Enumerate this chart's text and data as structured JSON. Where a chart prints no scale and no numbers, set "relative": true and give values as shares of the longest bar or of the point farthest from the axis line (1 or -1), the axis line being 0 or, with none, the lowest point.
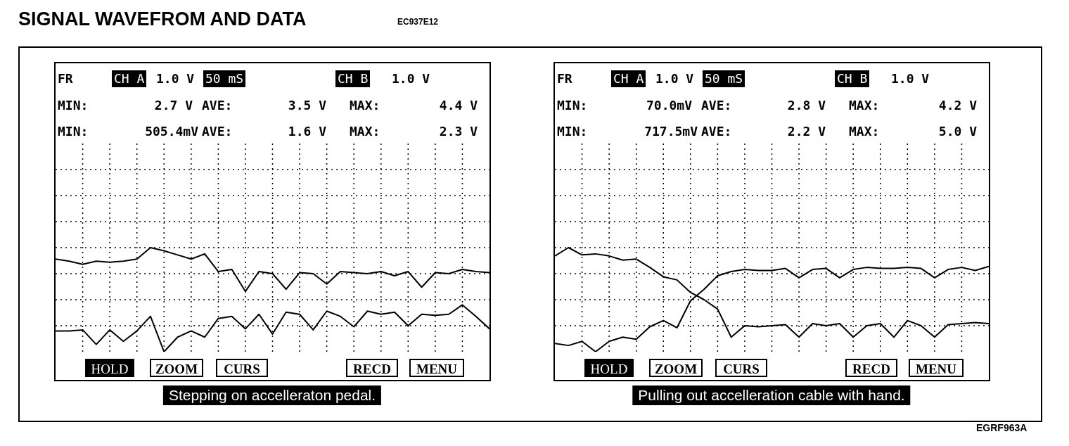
{
  "chart_data": [
    {
      "type": "line",
      "title": "SIGNAL WAVEFROM AND DATA",
      "relative": true,
      "grid": true,
      "marker": "none",
      "line_style": "solid",
      "categories": [
        null,
        null,
        null,
        null,
        null,
        null,
        null,
        null,
        null,
        null,
        null,
        null,
        null,
        null,
        null,
        null,
        null,
        null,
        null,
        null,
        null,
        null,
        null,
        null,
        null,
        null,
        null,
        null,
        null,
        null,
        null,
        null,
        null
      ],
      "series": [
        {
          "color": "#000000",
          "values": [
            0.89,
            0.87,
            0.84,
            0.87,
            0.86,
            0.87,
            0.89,
            1,
            0.97,
            0.93,
            0.89,
            0.94,
            0.77,
            0.79,
            0.58,
            0.77,
            0.75,
            0.6,
            0.76,
            0.75,
            0.65,
            0.77,
            0.76,
            0.75,
            0.77,
            0.73,
            0.77,
            0.62,
            0.76,
            0.75,
            0.79,
            0.77,
            0.76
          ]
        },
        {
          "color": "#000000",
          "values": [
            0.2,
            0.2,
            0.21,
            0.07,
            0.21,
            0.1,
            0.2,
            0.34,
            0,
            0.14,
            0.2,
            0.14,
            0.32,
            0.34,
            0.22,
            0.36,
            0.17,
            0.38,
            0.36,
            0.21,
            0.39,
            0.34,
            0.24,
            0.39,
            0.36,
            0.38,
            0.25,
            0.36,
            0.35,
            0.36,
            0.45,
            0.34,
            0.22
          ]
        }
      ],
      "annotations": [
        "FR",
        "CH A",
        "1.0 V",
        "50 mS",
        "CH B",
        "1.0 V",
        "MIN:",
        "2.7 V",
        "AVE:",
        "3.5 V",
        "MAX:",
        "4.4 V",
        "MIN:",
        "505.4mV",
        "AVE:",
        "1.6 V",
        "MAX:",
        "2.3 V",
        "HOLD",
        "ZOOM",
        "CURS",
        "RECD",
        "MENU",
        "Stepping on accelleraton pedal.",
        "EC937E12"
      ]
    },
    {
      "type": "line",
      "relative": true,
      "grid": true,
      "marker": "none",
      "line_style": "solid",
      "categories": [
        null,
        null,
        null,
        null,
        null,
        null,
        null,
        null,
        null,
        null,
        null,
        null,
        null,
        null,
        null,
        null,
        null,
        null,
        null,
        null,
        null,
        null,
        null,
        null,
        null,
        null,
        null,
        null,
        null,
        null,
        null,
        null,
        null
      ],
      "series": [
        {
          "color": "#000000",
          "values": [
            0.92,
            1,
            0.93,
            0.94,
            0.92,
            0.88,
            0.89,
            0.81,
            0.72,
            0.69,
            0.57,
            0.5,
            0.41,
            0.14,
            0.25,
            0.24,
            0.25,
            0.26,
            0.14,
            0.27,
            0.25,
            0.27,
            0.14,
            0.25,
            0.27,
            0.14,
            0.3,
            0.25,
            0.14,
            0.26,
            0.27,
            0.28,
            0.27
          ]
        },
        {
          "color": "#000000",
          "values": [
            0.08,
            0.06,
            0.1,
            0,
            0.1,
            0.14,
            0.12,
            0.24,
            0.3,
            0.23,
            0.49,
            0.6,
            0.73,
            0.77,
            0.79,
            0.78,
            0.78,
            0.8,
            0.71,
            0.79,
            0.8,
            0.71,
            0.79,
            0.81,
            0.8,
            0.8,
            0.81,
            0.8,
            0.71,
            0.79,
            0.81,
            0.78,
            0.82
          ]
        }
      ],
      "annotations": [
        "FR",
        "CH A",
        "1.0 V",
        "50 mS",
        "CH B",
        "1.0 V",
        "MIN:",
        "70.0mV",
        "AVE:",
        "2.8 V",
        "MAX:",
        "4.2 V",
        "MIN:",
        "717.5mV",
        "AVE:",
        "2.2 V",
        "MAX:",
        "5.0 V",
        "HOLD",
        "ZOOM",
        "CURS",
        "RECD",
        "MENU",
        "Pulling out accelleration cable with hand.",
        "EGRF963A"
      ]
    }
  ]
}
